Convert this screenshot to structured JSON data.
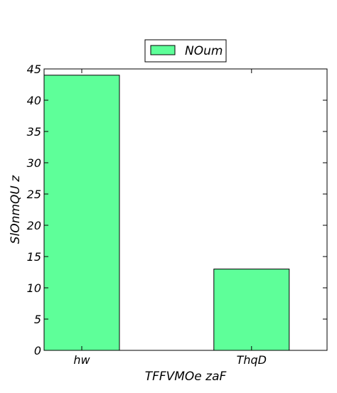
{
  "chart_data": {
    "type": "bar",
    "categories": [
      "hw",
      "ThqD"
    ],
    "series": [
      {
        "name": "NOum",
        "values": [
          44,
          13
        ],
        "color": "#5eff99"
      }
    ],
    "xlabel": "TFFVMOe  zaF",
    "ylabel": "SlOnmQU z",
    "ylim": [
      0,
      45
    ],
    "yticks": [
      0,
      5,
      10,
      15,
      20,
      25,
      30,
      35,
      40,
      45
    ],
    "grid": false,
    "legend_position": "top-center"
  }
}
